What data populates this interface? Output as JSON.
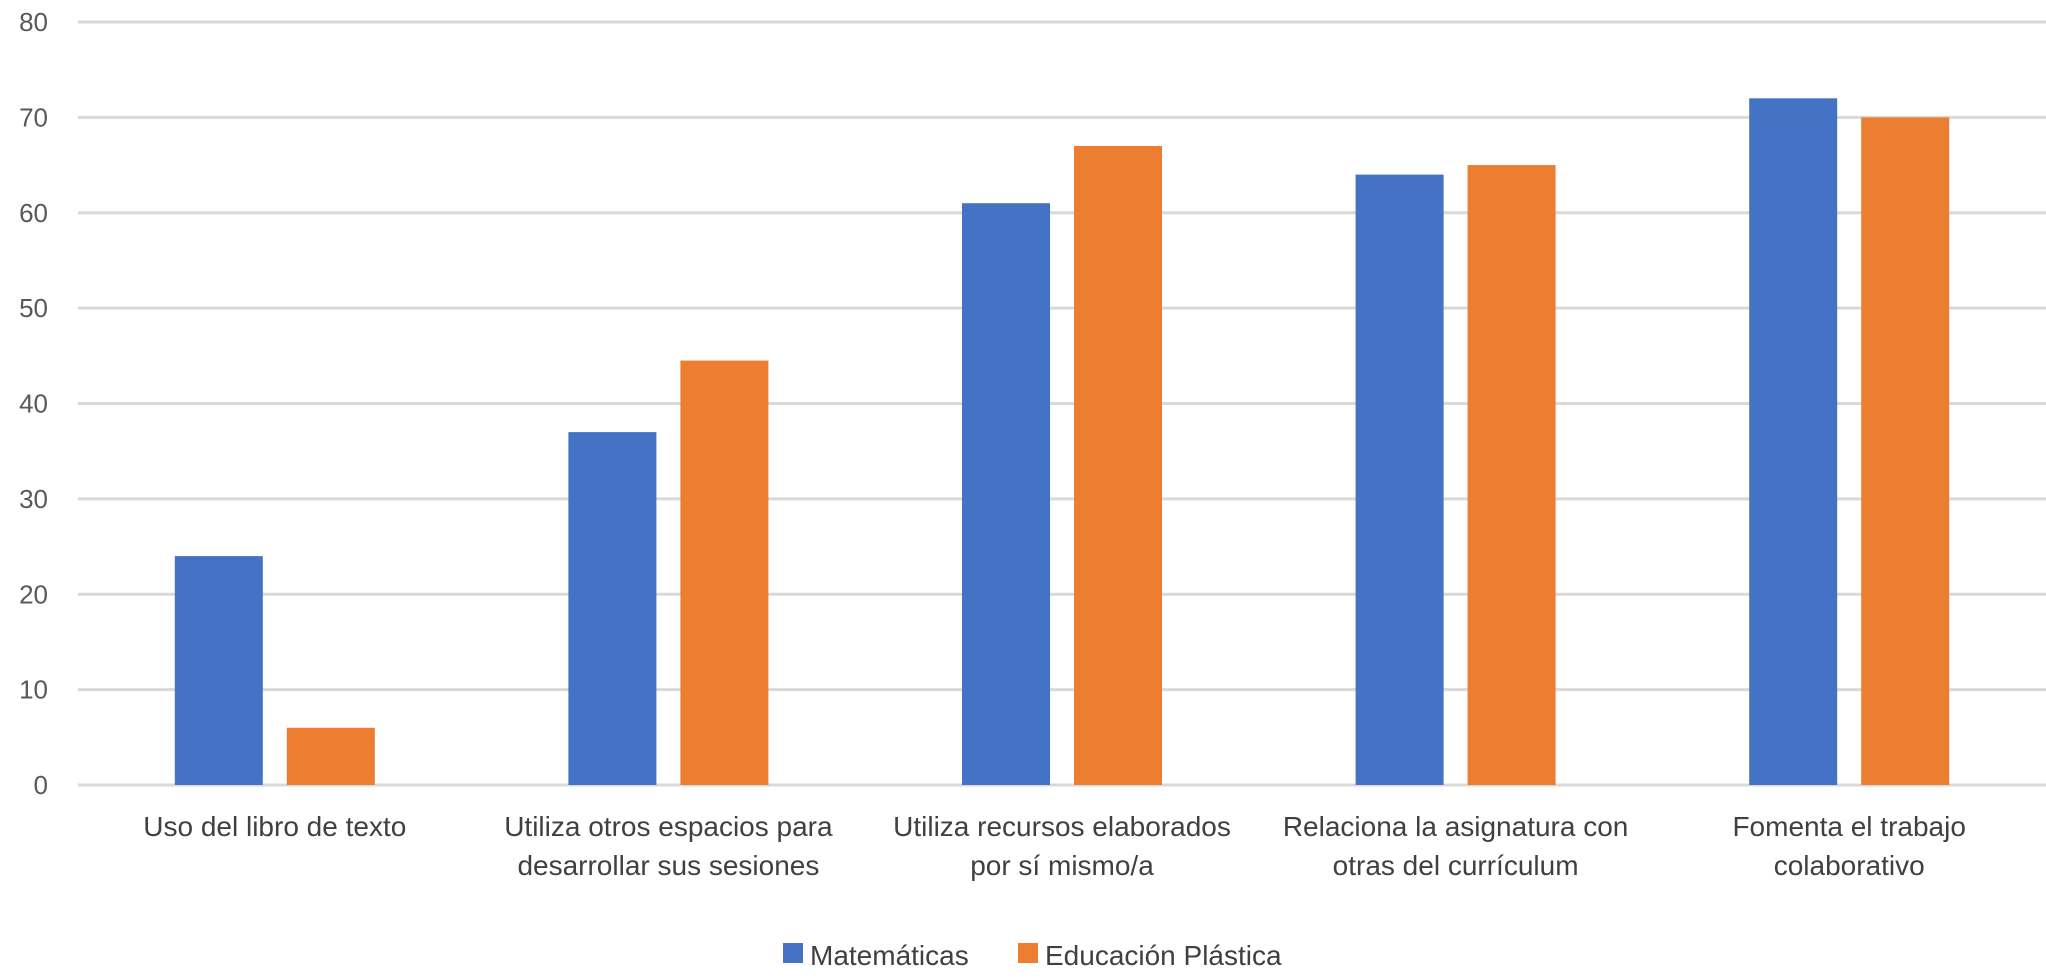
{
  "chart_data": {
    "type": "bar",
    "categories": [
      [
        "Uso del libro de texto"
      ],
      [
        "Utiliza otros espacios para",
        "desarrollar sus sesiones"
      ],
      [
        "Utiliza recursos elaborados",
        "por sí mismo/a"
      ],
      [
        "Relaciona la asignatura con",
        "otras del currículum"
      ],
      [
        "Fomenta el trabajo",
        "colaborativo"
      ]
    ],
    "series": [
      {
        "name": "Matemáticas",
        "color": "#4472C4",
        "values": [
          24,
          37,
          61,
          64,
          72
        ]
      },
      {
        "name": "Educación Plástica",
        "color": "#ED7D31",
        "values": [
          6,
          44.5,
          67,
          65,
          70
        ]
      }
    ],
    "ylim": [
      0,
      80
    ],
    "yticks": [
      0,
      10,
      20,
      30,
      40,
      50,
      60,
      70,
      80
    ],
    "grid": true,
    "legend_position": "bottom"
  }
}
